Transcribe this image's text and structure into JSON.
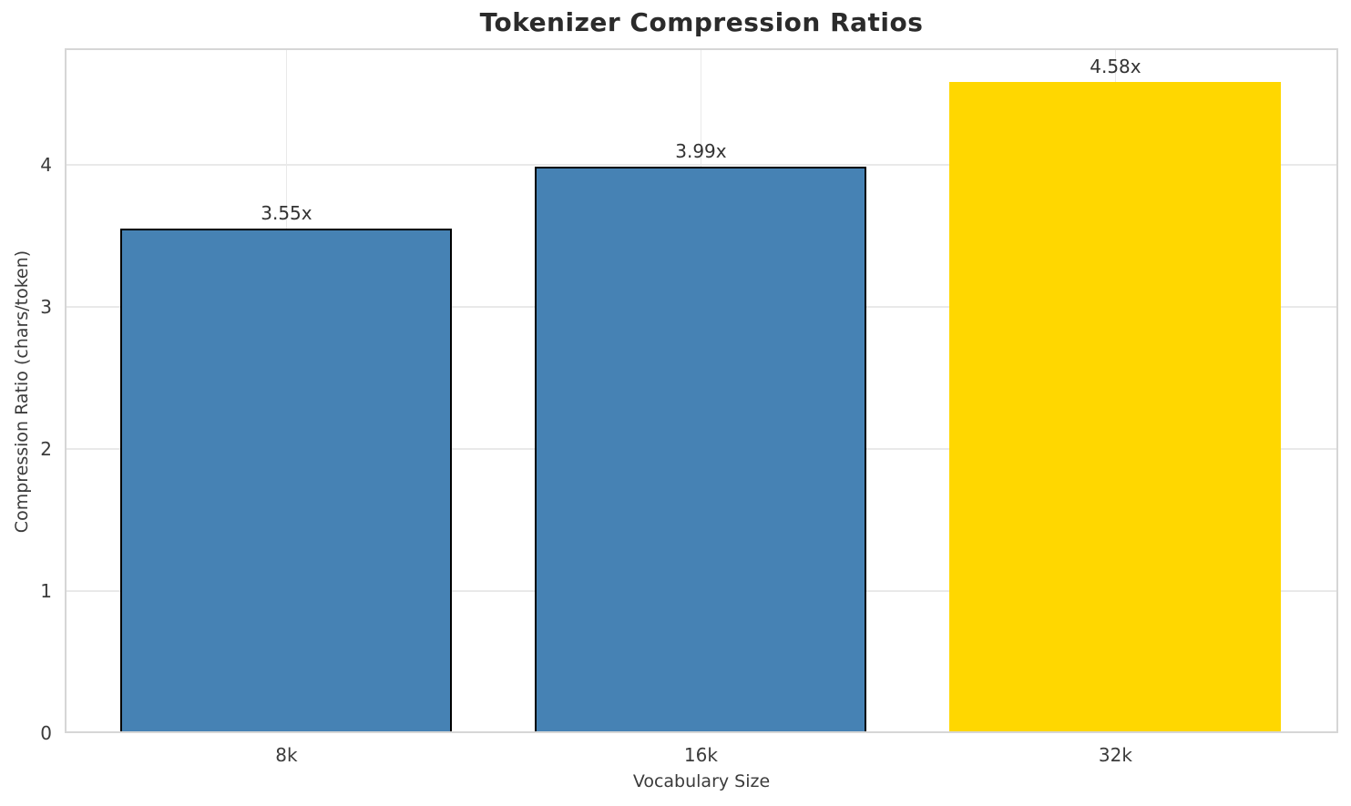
{
  "chart_data": {
    "type": "bar",
    "title": "Tokenizer Compression Ratios",
    "xlabel": "Vocabulary Size",
    "ylabel": "Compression Ratio (chars/token)",
    "categories": [
      "8k",
      "16k",
      "32k"
    ],
    "values": [
      3.55,
      3.99,
      4.58
    ],
    "bar_labels": [
      "3.55x",
      "3.99x",
      "4.58x"
    ],
    "bar_colors": [
      "#4682B4",
      "#4682B4",
      "#FFD700"
    ],
    "bar_edge_colors": [
      "#000000",
      "#000000",
      null
    ],
    "yticks": [
      0,
      1,
      2,
      3,
      4
    ],
    "ylim": [
      0,
      4.82
    ],
    "grid": true,
    "legend": false
  }
}
